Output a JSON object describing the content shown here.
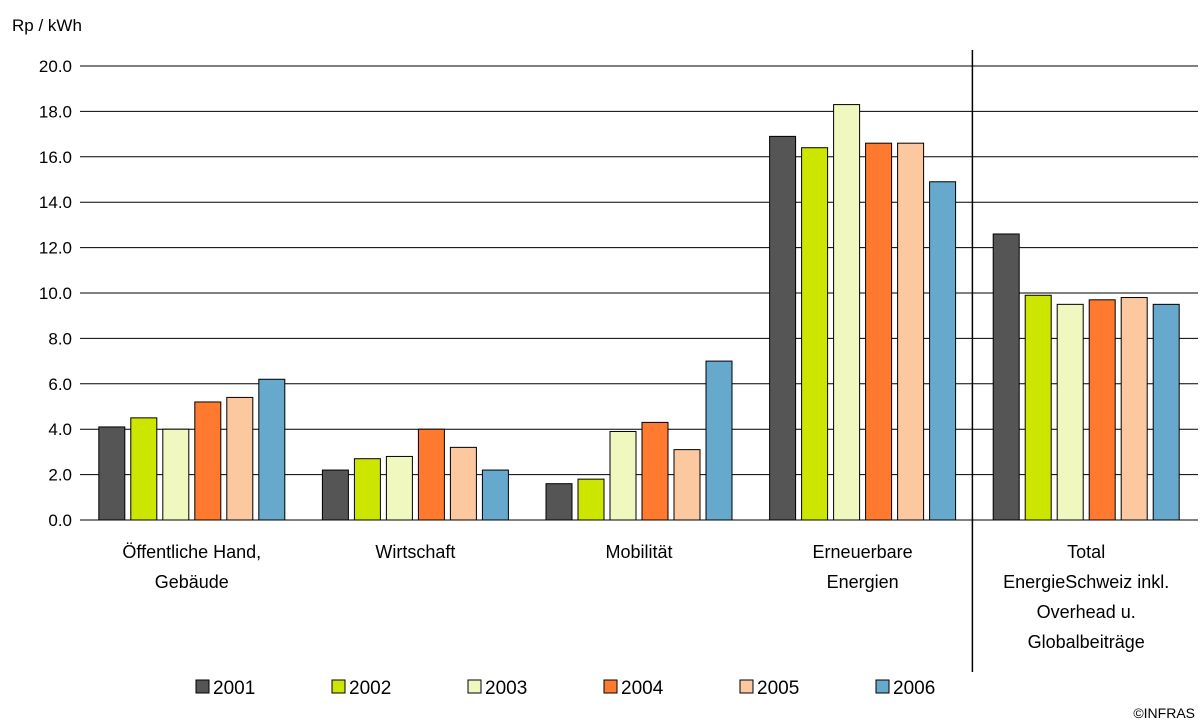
{
  "chart_data": {
    "type": "bar",
    "ylabel": "Rp / kWh",
    "ylim": [
      0,
      20
    ],
    "ytick_step": 2,
    "ytick_labels": [
      "0.0",
      "2.0",
      "4.0",
      "6.0",
      "8.0",
      "10.0",
      "12.0",
      "14.0",
      "16.0",
      "18.0",
      "20.0"
    ],
    "grid": true,
    "legend_position": "bottom",
    "categories": [
      [
        "Öffentliche Hand,",
        "Gebäude"
      ],
      [
        "Wirtschaft"
      ],
      [
        "Mobilität"
      ],
      [
        "Erneuerbare",
        "Energien"
      ],
      [
        "Total",
        "EnergieSchweiz inkl.",
        "Overhead u.",
        "Globalbeiträge"
      ]
    ],
    "separator_before_category": 4,
    "series": [
      {
        "name": "2001",
        "color": "#555555",
        "values": [
          4.1,
          2.2,
          1.6,
          16.9,
          12.6
        ]
      },
      {
        "name": "2002",
        "color": "#CCE600",
        "values": [
          4.5,
          2.7,
          1.8,
          16.4,
          9.9
        ]
      },
      {
        "name": "2003",
        "color": "#F0F8C0",
        "values": [
          4.0,
          2.8,
          3.9,
          18.3,
          9.5
        ]
      },
      {
        "name": "2004",
        "color": "#FF7A2E",
        "values": [
          5.2,
          4.0,
          4.3,
          16.6,
          9.7
        ]
      },
      {
        "name": "2005",
        "color": "#FCC8A0",
        "values": [
          5.4,
          3.2,
          3.1,
          16.6,
          9.8
        ]
      },
      {
        "name": "2006",
        "color": "#66A9CC",
        "values": [
          6.2,
          2.2,
          7.0,
          14.9,
          9.5
        ]
      }
    ],
    "copyright": "©INFRAS"
  }
}
